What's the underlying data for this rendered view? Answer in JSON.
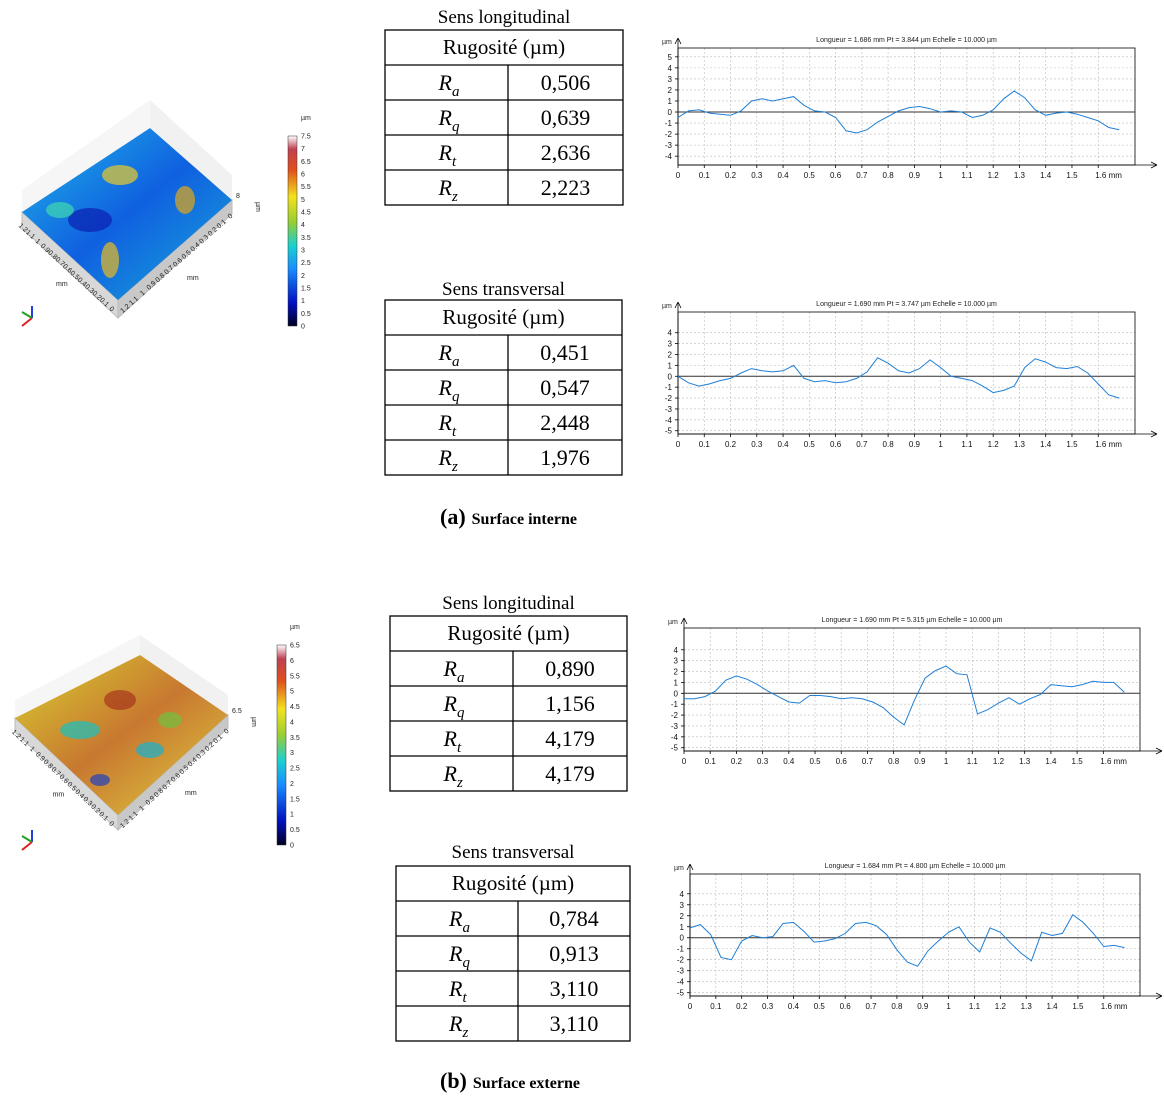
{
  "panels": [
    {
      "label": "(a)",
      "caption": "Surface interne",
      "surface": {
        "x_ticks": [
          "1.2",
          "1.1",
          "1",
          "0.9",
          "0.8",
          "0.7",
          "0.6",
          "0.5",
          "0.4",
          "0.3",
          "0.2",
          "0.1",
          "0"
        ],
        "y_ticks": [
          "1.2",
          "1.1",
          "1",
          "0.9",
          "0.8",
          "0.7",
          "0.6",
          "0.5",
          "0.4",
          "0.3",
          "0.2",
          "0.1",
          "0"
        ],
        "x_unit": "mm",
        "y_unit": "mm",
        "z_top": "8",
        "z_unit": "µm"
      },
      "colorbar": {
        "unit": "µm",
        "ticks": [
          "7.5",
          "7",
          "6.5",
          "6",
          "5.5",
          "5",
          "4.5",
          "4",
          "3.5",
          "3",
          "2.5",
          "2",
          "1.5",
          "1",
          "0.5",
          "0"
        ]
      },
      "tables": [
        {
          "title": "Sens longitudinal",
          "header": "Rugosité (µm)",
          "rows": [
            {
              "symbol": "R",
              "sub": "a",
              "value": "0,506"
            },
            {
              "symbol": "R",
              "sub": "q",
              "value": "0,639"
            },
            {
              "symbol": "R",
              "sub": "t",
              "value": "2,636"
            },
            {
              "symbol": "R",
              "sub": "z",
              "value": "2,223"
            }
          ]
        },
        {
          "title": "Sens transversal",
          "header": "Rugosité (µm)",
          "rows": [
            {
              "symbol": "R",
              "sub": "a",
              "value": "0,451"
            },
            {
              "symbol": "R",
              "sub": "q",
              "value": "0,547"
            },
            {
              "symbol": "R",
              "sub": "t",
              "value": "2,448"
            },
            {
              "symbol": "R",
              "sub": "z",
              "value": "1,976"
            }
          ]
        }
      ]
    },
    {
      "label": "(b)",
      "caption": "Surface externe",
      "surface": {
        "x_ticks": [
          "1.2",
          "1.1",
          "1",
          "0.9",
          "0.8",
          "0.7",
          "0.6",
          "0.5",
          "0.4",
          "0.3",
          "0.2",
          "0.1",
          "0"
        ],
        "y_ticks": [
          "1.2",
          "1.1",
          "1",
          "0.9",
          "0.8",
          "0.7",
          "0.6",
          "0.5",
          "0.4",
          "0.3",
          "0.2",
          "0.1",
          "0"
        ],
        "x_unit": "mm",
        "y_unit": "mm",
        "z_top": "6.5",
        "z_unit": "µm"
      },
      "colorbar": {
        "unit": "µm",
        "ticks": [
          "6.5",
          "6",
          "5.5",
          "5",
          "4.5",
          "4",
          "3.5",
          "3",
          "2.5",
          "2",
          "1.5",
          "1",
          "0.5",
          "0"
        ]
      },
      "tables": [
        {
          "title": "Sens longitudinal",
          "header": "Rugosité (µm)",
          "rows": [
            {
              "symbol": "R",
              "sub": "a",
              "value": "0,890"
            },
            {
              "symbol": "R",
              "sub": "q",
              "value": "1,156"
            },
            {
              "symbol": "R",
              "sub": "t",
              "value": "4,179"
            },
            {
              "symbol": "R",
              "sub": "z",
              "value": "4,179"
            }
          ]
        },
        {
          "title": "Sens transversal",
          "header": "Rugosité (µm)",
          "rows": [
            {
              "symbol": "R",
              "sub": "a",
              "value": "0,784"
            },
            {
              "symbol": "R",
              "sub": "q",
              "value": "0,913"
            },
            {
              "symbol": "R",
              "sub": "t",
              "value": "3,110"
            },
            {
              "symbol": "R",
              "sub": "z",
              "value": "3,110"
            }
          ]
        }
      ]
    }
  ],
  "chart_data": [
    {
      "type": "line",
      "title": "Longueur = 1.686 mm  Pt = 3.844 µm  Echelle = 10.000 µm",
      "ylabel": "µm",
      "color": "#1f7fd6",
      "grid": true,
      "x": [
        0,
        0.04,
        0.08,
        0.12,
        0.16,
        0.2,
        0.24,
        0.28,
        0.32,
        0.36,
        0.4,
        0.44,
        0.48,
        0.52,
        0.56,
        0.6,
        0.64,
        0.68,
        0.72,
        0.76,
        0.8,
        0.84,
        0.88,
        0.92,
        0.96,
        1.0,
        1.04,
        1.08,
        1.12,
        1.16,
        1.2,
        1.24,
        1.28,
        1.32,
        1.36,
        1.4,
        1.44,
        1.48,
        1.52,
        1.56,
        1.6,
        1.64,
        1.68
      ],
      "values": [
        -0.5,
        0.1,
        0.2,
        -0.1,
        -0.2,
        -0.3,
        0.1,
        1.0,
        1.2,
        1.0,
        1.2,
        1.4,
        0.6,
        0.1,
        0.0,
        -0.5,
        -1.7,
        -1.9,
        -1.6,
        -0.9,
        -0.4,
        0.1,
        0.4,
        0.5,
        0.3,
        0.0,
        0.1,
        0.0,
        -0.5,
        -0.3,
        0.2,
        1.2,
        1.9,
        1.3,
        0.2,
        -0.3,
        -0.1,
        0.0,
        -0.2,
        -0.5,
        -0.8,
        -1.4,
        -1.6
      ],
      "xlim": [
        0,
        1.74
      ],
      "ylim": [
        -4.8,
        5.8
      ],
      "xticks": [
        0,
        0.1,
        0.2,
        0.3,
        0.4,
        0.5,
        0.6,
        0.7,
        0.8,
        0.9,
        1,
        1.1,
        1.2,
        1.3,
        1.4,
        1.5,
        {
          "value": 1.6,
          "label": "1.6 mm"
        }
      ],
      "yticks": [
        5,
        4,
        3,
        2,
        1,
        0,
        -1,
        -2,
        -3,
        -4
      ]
    },
    {
      "type": "line",
      "title": "Longueur = 1.690 mm  Pt = 3.747 µm  Echelle = 10.000 µm",
      "ylabel": "µm",
      "color": "#1f7fd6",
      "grid": true,
      "x": [
        0,
        0.04,
        0.08,
        0.12,
        0.16,
        0.2,
        0.24,
        0.28,
        0.32,
        0.36,
        0.4,
        0.44,
        0.48,
        0.52,
        0.56,
        0.6,
        0.64,
        0.68,
        0.72,
        0.76,
        0.8,
        0.84,
        0.88,
        0.92,
        0.96,
        1.0,
        1.04,
        1.08,
        1.12,
        1.16,
        1.2,
        1.24,
        1.28,
        1.32,
        1.36,
        1.4,
        1.44,
        1.48,
        1.52,
        1.56,
        1.6,
        1.64,
        1.68
      ],
      "values": [
        0,
        -0.6,
        -0.9,
        -0.7,
        -0.4,
        -0.2,
        0.3,
        0.7,
        0.5,
        0.4,
        0.5,
        1.0,
        -0.2,
        -0.5,
        -0.4,
        -0.6,
        -0.5,
        -0.2,
        0.4,
        1.7,
        1.2,
        0.5,
        0.3,
        0.7,
        1.5,
        0.8,
        0.0,
        -0.2,
        -0.4,
        -0.9,
        -1.5,
        -1.3,
        -0.9,
        0.8,
        1.6,
        1.3,
        0.8,
        0.7,
        0.9,
        0.3,
        -0.7,
        -1.7,
        -2.0
      ],
      "xlim": [
        0,
        1.74
      ],
      "ylim": [
        -5.3,
        5.9
      ],
      "xticks": [
        0,
        0.1,
        0.2,
        0.3,
        0.4,
        0.5,
        0.6,
        0.7,
        0.8,
        0.9,
        1,
        1.1,
        1.2,
        1.3,
        1.4,
        1.5,
        {
          "value": 1.6,
          "label": "1.6 mm"
        }
      ],
      "yticks": [
        4,
        3,
        2,
        1,
        0,
        -1,
        -2,
        -3,
        -4,
        -5
      ]
    },
    {
      "type": "line",
      "title": "Longueur = 1.690 mm  Pt = 5.315 µm  Echelle = 10.000 µm",
      "ylabel": "µm",
      "color": "#1f7fd6",
      "grid": true,
      "x": [
        0,
        0.04,
        0.08,
        0.12,
        0.16,
        0.2,
        0.24,
        0.28,
        0.32,
        0.36,
        0.4,
        0.44,
        0.48,
        0.52,
        0.56,
        0.6,
        0.64,
        0.68,
        0.72,
        0.76,
        0.8,
        0.84,
        0.88,
        0.92,
        0.96,
        1.0,
        1.04,
        1.08,
        1.12,
        1.16,
        1.2,
        1.24,
        1.28,
        1.32,
        1.36,
        1.4,
        1.44,
        1.48,
        1.52,
        1.56,
        1.6,
        1.64,
        1.68
      ],
      "values": [
        -0.5,
        -0.5,
        -0.3,
        0.2,
        1.2,
        1.6,
        1.3,
        0.8,
        0.2,
        -0.3,
        -0.8,
        -0.9,
        -0.2,
        -0.2,
        -0.3,
        -0.5,
        -0.4,
        -0.5,
        -0.8,
        -1.3,
        -2.2,
        -2.9,
        -0.6,
        1.4,
        2.1,
        2.5,
        1.8,
        1.7,
        -1.9,
        -1.5,
        -0.9,
        -0.4,
        -1.0,
        -0.5,
        -0.1,
        0.8,
        0.7,
        0.6,
        0.8,
        1.1,
        1.0,
        1.0,
        0.1
      ],
      "xlim": [
        0,
        1.74
      ],
      "ylim": [
        -5.3,
        6.0
      ],
      "xticks": [
        0,
        0.1,
        0.2,
        0.3,
        0.4,
        0.5,
        0.6,
        0.7,
        0.8,
        0.9,
        1,
        1.1,
        1.2,
        1.3,
        1.4,
        1.5,
        {
          "value": 1.6,
          "label": "1.6 mm"
        }
      ],
      "yticks": [
        4,
        3,
        2,
        1,
        0,
        -1,
        -2,
        -3,
        -4,
        -5
      ]
    },
    {
      "type": "line",
      "title": "Longueur = 1.684 mm  Pt = 4.800 µm  Echelle = 10.000 µm",
      "ylabel": "µm",
      "color": "#1f7fd6",
      "grid": true,
      "x": [
        0,
        0.04,
        0.08,
        0.12,
        0.16,
        0.2,
        0.24,
        0.28,
        0.32,
        0.36,
        0.4,
        0.44,
        0.48,
        0.52,
        0.56,
        0.6,
        0.64,
        0.68,
        0.72,
        0.76,
        0.8,
        0.84,
        0.88,
        0.92,
        0.96,
        1.0,
        1.04,
        1.08,
        1.12,
        1.16,
        1.2,
        1.24,
        1.28,
        1.32,
        1.36,
        1.4,
        1.44,
        1.48,
        1.52,
        1.56,
        1.6,
        1.64,
        1.68
      ],
      "values": [
        0.9,
        1.2,
        0.3,
        -1.8,
        -2.0,
        -0.3,
        0.2,
        0.0,
        0.1,
        1.3,
        1.4,
        0.6,
        -0.4,
        -0.3,
        -0.1,
        0.4,
        1.3,
        1.4,
        1.1,
        0.3,
        -1.1,
        -2.2,
        -2.6,
        -1.2,
        -0.3,
        0.5,
        1.0,
        -0.4,
        -1.3,
        0.9,
        0.5,
        -0.5,
        -1.4,
        -2.1,
        0.5,
        0.2,
        0.4,
        2.1,
        1.4,
        0.4,
        -0.8,
        -0.7,
        -0.9
      ],
      "xlim": [
        0,
        1.74
      ],
      "ylim": [
        -5.3,
        5.8
      ],
      "xticks": [
        0,
        0.1,
        0.2,
        0.3,
        0.4,
        0.5,
        0.6,
        0.7,
        0.8,
        0.9,
        1,
        1.1,
        1.2,
        1.3,
        1.4,
        1.5,
        {
          "value": 1.6,
          "label": "1.6 mm"
        }
      ],
      "yticks": [
        4,
        3,
        2,
        1,
        0,
        -1,
        -2,
        -3,
        -4,
        -5
      ]
    }
  ]
}
